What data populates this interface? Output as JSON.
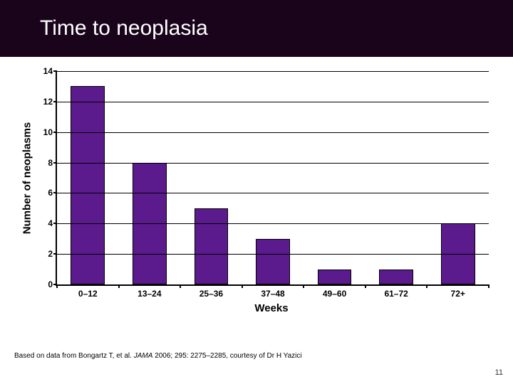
{
  "title": "Time to neoplasia",
  "title_band_bg": "#1a041c",
  "title_color": "#ffffff",
  "chart": {
    "type": "bar",
    "categories": [
      "0–12",
      "13–24",
      "25–36",
      "37–48",
      "49–60",
      "61–72",
      "72+"
    ],
    "values": [
      13,
      8,
      5,
      3,
      1,
      1,
      4
    ],
    "bar_color": "#5b1b8c",
    "bar_border": "#000000",
    "bar_width_rel": 0.55,
    "ylabel": "Number of neoplasms",
    "xlabel": "Weeks",
    "ylim": [
      0,
      14
    ],
    "ytick_step": 2,
    "plot_bg": "#ffffff",
    "grid_color": "#000000",
    "axis_label_fontsize": 15,
    "tick_fontsize": 12
  },
  "citation_prefix": "Based on data from Bongartz T, et al. ",
  "citation_journal": "JAMA",
  "citation_suffix": " 2006; 295: 2275–2285, courtesy of Dr H Yazici",
  "slide_number": "11"
}
